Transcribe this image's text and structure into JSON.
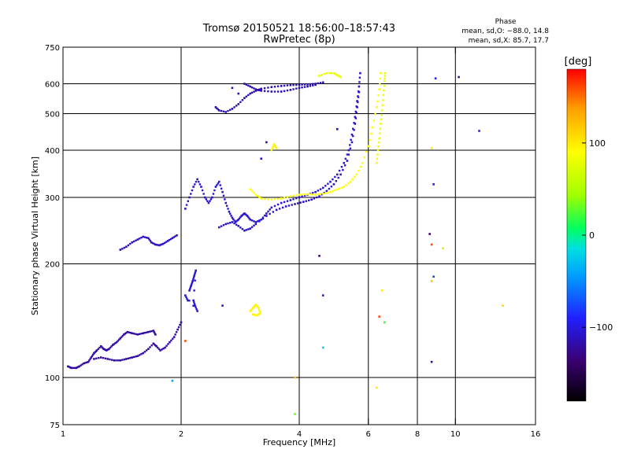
{
  "header": {
    "title_line1": "Tromsø 20150521 18:56:00–18:57:43",
    "title_line2": "RwPretec (8p)",
    "phase_heading": "Phase",
    "phase_stats_o": "mean, sd,O: −88.0, 14.8",
    "phase_stats_x": "mean, sd,X:  85.7, 17.7"
  },
  "colorbar": {
    "unit_label": "[deg]",
    "range": [
      -180,
      180
    ],
    "ticks": [
      {
        "value": 100,
        "label": "100"
      },
      {
        "value": 0,
        "label": "0"
      },
      {
        "value": -100,
        "label": "−100"
      }
    ],
    "stops": [
      "#000000",
      "#3a0070",
      "#2020ff",
      "#00a0ff",
      "#00e0e0",
      "#00ff60",
      "#a0ff00",
      "#ffff00",
      "#ffa000",
      "#ff0000"
    ]
  },
  "chart_data": {
    "type": "scatter",
    "title": "Tromsø 20150521 18:56:00–18:57:43",
    "subtitle": "RwPretec (8p)",
    "xlabel": "Frequency [MHz]",
    "ylabel": "Stationary phase Virtual Height [km]",
    "xscale": "log",
    "yscale": "log",
    "xlim": [
      1,
      16
    ],
    "ylim": [
      75,
      750
    ],
    "xticks": [
      {
        "value": 1,
        "label": "1"
      },
      {
        "value": 2,
        "label": "2"
      },
      {
        "value": 4,
        "label": "4"
      },
      {
        "value": 6,
        "label": "6"
      },
      {
        "value": 8,
        "label": "8"
      },
      {
        "value": 10,
        "label": "10"
      },
      {
        "value": 16,
        "label": "16"
      }
    ],
    "yticks": [
      {
        "value": 75,
        "label": "75"
      },
      {
        "value": 100,
        "label": "100"
      },
      {
        "value": 200,
        "label": "200"
      },
      {
        "value": 300,
        "label": "300"
      },
      {
        "value": 400,
        "label": "400"
      },
      {
        "value": 500,
        "label": "500"
      },
      {
        "value": 600,
        "label": "600"
      },
      {
        "value": 750,
        "label": "750"
      }
    ],
    "grid_x": [
      2,
      4,
      6,
      8,
      10
    ],
    "grid_y": [
      100,
      200,
      300,
      400,
      500,
      600
    ],
    "grid": true,
    "color_variable": "phase [deg]",
    "traces": [
      {
        "phase": -120,
        "points": [
          [
            1.03,
            107
          ],
          [
            1.05,
            106
          ],
          [
            1.08,
            106
          ],
          [
            1.1,
            107
          ],
          [
            1.13,
            109
          ],
          [
            1.16,
            110
          ],
          [
            1.18,
            113
          ],
          [
            1.2,
            116
          ],
          [
            1.22,
            118
          ],
          [
            1.25,
            121
          ],
          [
            1.27,
            119
          ],
          [
            1.29,
            118
          ],
          [
            1.31,
            119
          ],
          [
            1.34,
            122
          ],
          [
            1.37,
            124
          ],
          [
            1.4,
            127
          ],
          [
            1.43,
            130
          ],
          [
            1.46,
            132
          ],
          [
            1.5,
            131
          ],
          [
            1.55,
            130
          ],
          [
            1.6,
            131
          ],
          [
            1.65,
            132
          ],
          [
            1.7,
            133
          ],
          [
            1.72,
            130
          ]
        ]
      },
      {
        "phase": -120,
        "points": [
          [
            1.2,
            112
          ],
          [
            1.25,
            113
          ],
          [
            1.3,
            112
          ],
          [
            1.35,
            111
          ],
          [
            1.4,
            111
          ],
          [
            1.45,
            112
          ],
          [
            1.5,
            113
          ],
          [
            1.55,
            114
          ],
          [
            1.6,
            116
          ],
          [
            1.65,
            119
          ],
          [
            1.7,
            123
          ],
          [
            1.73,
            121
          ],
          [
            1.77,
            118
          ],
          [
            1.82,
            120
          ],
          [
            1.87,
            124
          ],
          [
            1.92,
            128
          ],
          [
            1.96,
            134
          ],
          [
            2.0,
            140
          ]
        ]
      },
      {
        "phase": -110,
        "points": [
          [
            1.4,
            218
          ],
          [
            1.45,
            222
          ],
          [
            1.5,
            228
          ],
          [
            1.55,
            232
          ],
          [
            1.6,
            236
          ],
          [
            1.65,
            234
          ],
          [
            1.68,
            228
          ],
          [
            1.72,
            225
          ],
          [
            1.76,
            224
          ],
          [
            1.8,
            226
          ],
          [
            1.85,
            230
          ],
          [
            1.9,
            234
          ],
          [
            1.95,
            238
          ]
        ]
      },
      {
        "phase": -105,
        "points": [
          [
            2.05,
            280
          ],
          [
            2.1,
            300
          ],
          [
            2.15,
            320
          ],
          [
            2.2,
            335
          ],
          [
            2.25,
            320
          ],
          [
            2.3,
            300
          ],
          [
            2.35,
            290
          ],
          [
            2.4,
            300
          ],
          [
            2.45,
            320
          ],
          [
            2.5,
            330
          ],
          [
            2.55,
            310
          ],
          [
            2.6,
            290
          ],
          [
            2.65,
            275
          ],
          [
            2.7,
            265
          ],
          [
            2.75,
            258
          ],
          [
            2.8,
            262
          ],
          [
            2.85,
            268
          ],
          [
            2.9,
            272
          ],
          [
            2.95,
            268
          ],
          [
            3.0,
            262
          ],
          [
            3.1,
            258
          ],
          [
            3.2,
            262
          ],
          [
            3.3,
            272
          ],
          [
            3.4,
            282
          ],
          [
            3.6,
            290
          ],
          [
            3.8,
            295
          ],
          [
            4.0,
            300
          ],
          [
            4.2,
            305
          ],
          [
            4.4,
            310
          ],
          [
            4.6,
            318
          ],
          [
            4.8,
            330
          ],
          [
            5.0,
            345
          ],
          [
            5.2,
            370
          ],
          [
            5.35,
            400
          ],
          [
            5.45,
            440
          ],
          [
            5.55,
            490
          ],
          [
            5.62,
            540
          ],
          [
            5.68,
            590
          ],
          [
            5.72,
            640
          ]
        ]
      },
      {
        "phase": -108,
        "points": [
          [
            2.5,
            250
          ],
          [
            2.6,
            255
          ],
          [
            2.7,
            258
          ],
          [
            2.8,
            252
          ],
          [
            2.9,
            245
          ],
          [
            3.0,
            248
          ],
          [
            3.1,
            255
          ],
          [
            3.3,
            268
          ],
          [
            3.5,
            278
          ],
          [
            3.7,
            284
          ],
          [
            3.9,
            288
          ],
          [
            4.1,
            292
          ],
          [
            4.3,
            296
          ],
          [
            4.5,
            302
          ],
          [
            4.7,
            312
          ],
          [
            4.9,
            325
          ],
          [
            5.1,
            345
          ],
          [
            5.3,
            375
          ],
          [
            5.45,
            420
          ],
          [
            5.55,
            470
          ],
          [
            5.62,
            520
          ],
          [
            5.68,
            570
          ]
        ]
      },
      {
        "phase": -115,
        "points": [
          [
            2.45,
            520
          ],
          [
            2.5,
            510
          ],
          [
            2.6,
            505
          ],
          [
            2.7,
            515
          ],
          [
            2.8,
            530
          ],
          [
            2.9,
            550
          ],
          [
            3.0,
            565
          ],
          [
            3.1,
            575
          ],
          [
            3.2,
            582
          ],
          [
            3.4,
            588
          ],
          [
            3.6,
            592
          ],
          [
            3.8,
            595
          ],
          [
            4.0,
            596
          ],
          [
            4.2,
            598
          ],
          [
            4.4,
            600
          ],
          [
            4.6,
            605
          ]
        ]
      },
      {
        "phase": -115,
        "points": [
          [
            2.9,
            600
          ],
          [
            3.0,
            590
          ],
          [
            3.1,
            580
          ],
          [
            3.2,
            575
          ],
          [
            3.4,
            572
          ],
          [
            3.6,
            572
          ],
          [
            3.8,
            578
          ],
          [
            4.0,
            585
          ],
          [
            4.2,
            590
          ],
          [
            4.4,
            596
          ]
        ]
      },
      {
        "phase": -105,
        "points": [
          [
            2.1,
            170
          ],
          [
            2.12,
            175
          ],
          [
            2.14,
            180
          ],
          [
            2.16,
            186
          ],
          [
            2.18,
            192
          ],
          [
            2.15,
            160
          ],
          [
            2.17,
            155
          ],
          [
            2.2,
            150
          ],
          [
            2.05,
            165
          ],
          [
            2.08,
            160
          ]
        ]
      },
      {
        "phase": 90,
        "points": [
          [
            3.0,
            315
          ],
          [
            3.1,
            305
          ],
          [
            3.2,
            298
          ],
          [
            3.4,
            296
          ],
          [
            3.6,
            298
          ],
          [
            3.8,
            302
          ],
          [
            4.0,
            305
          ],
          [
            4.2,
            306
          ],
          [
            4.4,
            305
          ],
          [
            4.6,
            307
          ],
          [
            4.8,
            310
          ],
          [
            5.0,
            315
          ],
          [
            5.2,
            320
          ],
          [
            5.4,
            330
          ],
          [
            5.6,
            345
          ],
          [
            5.8,
            370
          ],
          [
            6.0,
            410
          ],
          [
            6.15,
            460
          ],
          [
            6.3,
            520
          ],
          [
            6.4,
            580
          ],
          [
            6.45,
            640
          ]
        ]
      },
      {
        "phase": 80,
        "points": [
          [
            6.3,
            370
          ],
          [
            6.35,
            400
          ],
          [
            6.4,
            430
          ],
          [
            6.45,
            470
          ],
          [
            6.5,
            510
          ],
          [
            6.55,
            560
          ],
          [
            6.6,
            610
          ],
          [
            6.62,
            640
          ]
        ]
      },
      {
        "phase": 80,
        "points": [
          [
            4.5,
            630
          ],
          [
            4.7,
            640
          ],
          [
            4.9,
            640
          ],
          [
            5.0,
            632
          ],
          [
            5.1,
            625
          ]
        ]
      },
      {
        "phase": 95,
        "points": [
          [
            3.0,
            150
          ],
          [
            3.05,
            153
          ],
          [
            3.1,
            156
          ],
          [
            3.15,
            153
          ],
          [
            3.18,
            148
          ],
          [
            3.12,
            146
          ],
          [
            3.05,
            147
          ]
        ]
      },
      {
        "phase": 95,
        "points": [
          [
            3.4,
            400
          ],
          [
            3.45,
            415
          ],
          [
            3.5,
            405
          ]
        ]
      }
    ],
    "scattered_points": [
      {
        "x": 2.7,
        "y": 585,
        "phase": -115
      },
      {
        "x": 2.8,
        "y": 565,
        "phase": -115
      },
      {
        "x": 3.3,
        "y": 420,
        "phase": -120
      },
      {
        "x": 3.2,
        "y": 380,
        "phase": -115
      },
      {
        "x": 4.5,
        "y": 210,
        "phase": -135
      },
      {
        "x": 5.0,
        "y": 455,
        "phase": -120
      },
      {
        "x": 4.6,
        "y": 165,
        "phase": -105
      },
      {
        "x": 4.6,
        "y": 120,
        "phase": -20
      },
      {
        "x": 6.4,
        "y": 145,
        "phase": 160
      },
      {
        "x": 6.5,
        "y": 170,
        "phase": 100
      },
      {
        "x": 6.6,
        "y": 140,
        "phase": 20
      },
      {
        "x": 6.3,
        "y": 94,
        "phase": 100
      },
      {
        "x": 8.7,
        "y": 110,
        "phase": -120
      },
      {
        "x": 8.6,
        "y": 240,
        "phase": -140
      },
      {
        "x": 8.7,
        "y": 225,
        "phase": 160
      },
      {
        "x": 8.8,
        "y": 185,
        "phase": -80
      },
      {
        "x": 8.7,
        "y": 180,
        "phase": 120
      },
      {
        "x": 8.8,
        "y": 325,
        "phase": -100
      },
      {
        "x": 8.7,
        "y": 405,
        "phase": 100
      },
      {
        "x": 8.9,
        "y": 620,
        "phase": -90
      },
      {
        "x": 10.2,
        "y": 625,
        "phase": -120
      },
      {
        "x": 11.5,
        "y": 450,
        "phase": -100
      },
      {
        "x": 13.2,
        "y": 155,
        "phase": 110
      },
      {
        "x": 9.3,
        "y": 220,
        "phase": 60
      },
      {
        "x": 1.9,
        "y": 98,
        "phase": -40
      },
      {
        "x": 2.05,
        "y": 125,
        "phase": 160
      },
      {
        "x": 3.9,
        "y": 100,
        "phase": 120
      },
      {
        "x": 3.9,
        "y": 80,
        "phase": 30
      },
      {
        "x": 2.55,
        "y": 155,
        "phase": -110
      }
    ]
  }
}
